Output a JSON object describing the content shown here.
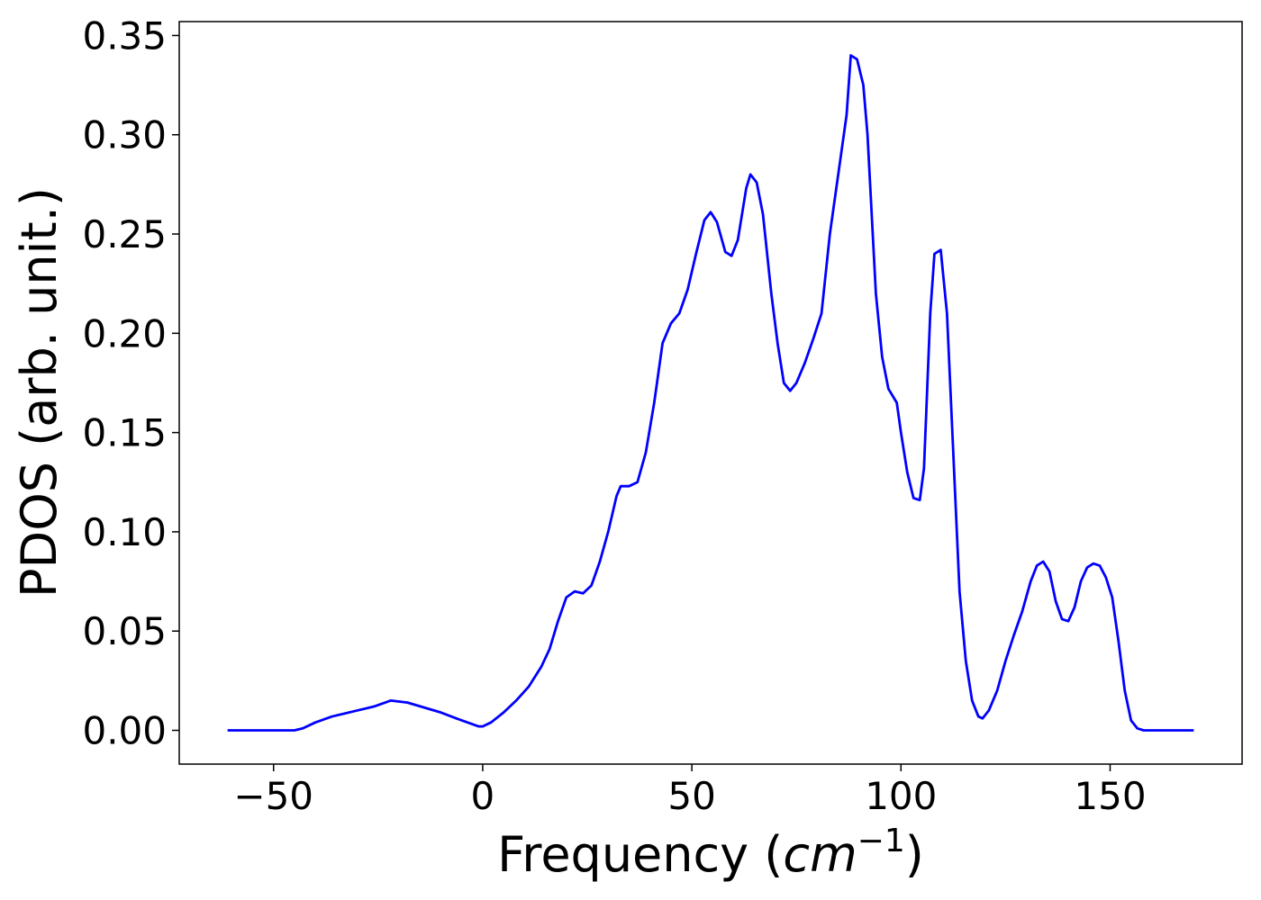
{
  "chart_data": {
    "type": "line",
    "xlabel": [
      "Frequency (",
      "cm",
      "−1",
      ")"
    ],
    "ylabel": "PDOS (arb. unit.)",
    "xlim": [
      -72.55,
      181.55
    ],
    "ylim": [
      -0.017,
      0.357
    ],
    "xticks": [
      {
        "value": -50,
        "label": "−50"
      },
      0,
      50,
      100,
      150
    ],
    "yticks": [
      {
        "value": 0,
        "label": "0.00"
      },
      0.05,
      {
        "value": 0.1,
        "label": "0.10"
      },
      0.15,
      {
        "value": 0.2,
        "label": "0.20"
      },
      0.25,
      {
        "value": 0.3,
        "label": "0.30"
      },
      0.35
    ],
    "grid": false,
    "x": [
      -61,
      -45,
      -43,
      -40,
      -36,
      -30,
      -26,
      -22,
      -18,
      -10,
      -5,
      -1,
      0,
      2,
      5,
      8,
      11,
      14,
      16,
      18,
      20,
      22,
      24,
      26,
      28,
      30,
      32,
      33,
      35,
      37,
      39,
      41,
      43,
      45,
      47,
      49,
      51,
      53,
      54.5,
      56,
      58,
      59.5,
      61,
      63,
      64,
      65.5,
      67,
      69,
      70.5,
      72,
      73.5,
      75,
      77,
      79,
      81,
      83,
      85,
      87,
      88,
      89.5,
      91,
      92,
      94,
      95.5,
      97,
      99,
      100,
      101.5,
      103,
      104.5,
      105.5,
      107,
      108,
      109.5,
      111,
      112.5,
      114,
      115.5,
      117,
      118.5,
      119.5,
      121,
      123,
      125,
      127,
      129,
      131,
      132.5,
      134,
      135.5,
      137,
      138.5,
      140,
      141.5,
      143,
      144.5,
      146,
      147.5,
      149,
      150.5,
      152,
      153.5,
      155,
      156.5,
      158,
      170
    ],
    "series": [
      {
        "name": "PDOS",
        "color": "#0000ff",
        "values": [
          0,
          0,
          0.001,
          0.004,
          0.007,
          0.01,
          0.012,
          0.015,
          0.014,
          0.009,
          0.005,
          0.002,
          0.002,
          0.004,
          0.009,
          0.015,
          0.022,
          0.032,
          0.041,
          0.055,
          0.067,
          0.07,
          0.069,
          0.073,
          0.085,
          0.1,
          0.118,
          0.123,
          0.123,
          0.125,
          0.14,
          0.165,
          0.195,
          0.205,
          0.21,
          0.222,
          0.24,
          0.257,
          0.261,
          0.256,
          0.241,
          0.239,
          0.247,
          0.273,
          0.28,
          0.276,
          0.26,
          0.22,
          0.195,
          0.175,
          0.171,
          0.175,
          0.185,
          0.197,
          0.21,
          0.25,
          0.28,
          0.31,
          0.34,
          0.338,
          0.325,
          0.3,
          0.22,
          0.188,
          0.172,
          0.165,
          0.15,
          0.13,
          0.117,
          0.116,
          0.132,
          0.21,
          0.24,
          0.242,
          0.21,
          0.14,
          0.07,
          0.035,
          0.015,
          0.007,
          0.006,
          0.01,
          0.02,
          0.035,
          0.048,
          0.06,
          0.075,
          0.083,
          0.085,
          0.08,
          0.065,
          0.056,
          0.055,
          0.062,
          0.075,
          0.082,
          0.084,
          0.083,
          0.077,
          0.067,
          0.045,
          0.02,
          0.005,
          0.001,
          0,
          0
        ]
      }
    ]
  }
}
